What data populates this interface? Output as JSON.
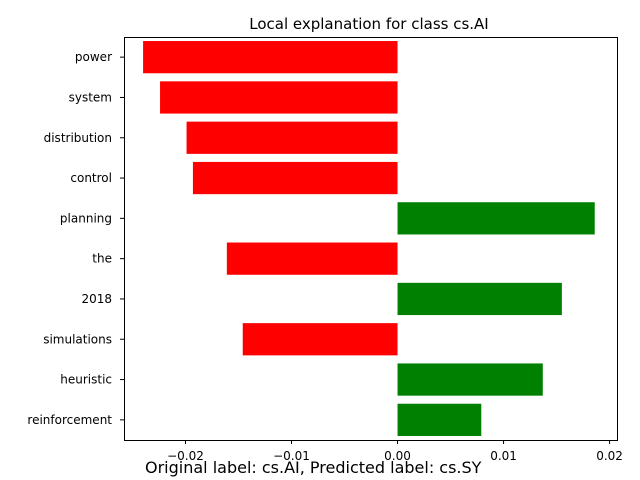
{
  "chart_data": {
    "type": "bar",
    "orientation": "horizontal",
    "title": "Local explanation for class cs.AI",
    "xlabel": "",
    "ylabel": "",
    "categories": [
      "power",
      "system",
      "distribution",
      "control",
      "planning",
      "the",
      "2018",
      "simulations",
      "heuristic",
      "reinforcement"
    ],
    "values": [
      -0.024,
      -0.0224,
      -0.0199,
      -0.0193,
      0.0186,
      -0.0161,
      0.0155,
      -0.0146,
      0.0137,
      0.0079
    ],
    "xlim": [
      -0.0258,
      0.0207
    ],
    "xticks": [
      -0.02,
      -0.01,
      0.0,
      0.01,
      0.02
    ],
    "xtick_labels": [
      "−0.02",
      "−0.01",
      "0.00",
      "0.01",
      "0.02"
    ],
    "colors": {
      "positive": "#008000",
      "negative": "#ff0000"
    },
    "grid": false,
    "caption": "Original label: cs.AI, Predicted label: cs.SY"
  }
}
